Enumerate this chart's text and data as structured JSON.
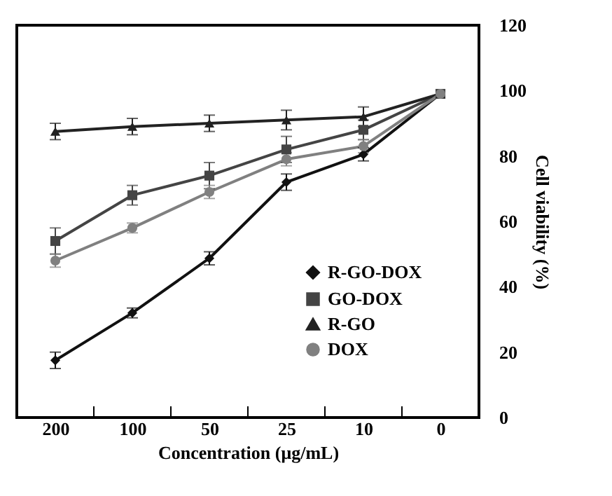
{
  "chart_data": {
    "type": "line",
    "xlabel": "Concentration (μg/mL)",
    "ylabel": "Cell viability (%)",
    "categories": [
      "200",
      "100",
      "50",
      "25",
      "10",
      "0"
    ],
    "ylim": [
      0,
      120
    ],
    "yticks": [
      0,
      20,
      40,
      60,
      80,
      100,
      120
    ],
    "grid": false,
    "legend": "bottom right",
    "line_style": "solid",
    "series": [
      {
        "name": "R-GO-DOX",
        "color": "#111111",
        "marker": "diamond",
        "values": [
          17.5,
          32,
          48.7,
          72,
          80.5,
          99
        ],
        "errors": [
          2.5,
          1.5,
          2,
          2.5,
          2,
          null
        ]
      },
      {
        "name": "GO-DOX",
        "color": "#444444",
        "marker": "square",
        "values": [
          54,
          68,
          74,
          82,
          88,
          99
        ],
        "errors": [
          4,
          3,
          4,
          4,
          3,
          null
        ]
      },
      {
        "name": "R-GO",
        "color": "#222222",
        "marker": "triangle",
        "values": [
          87.5,
          89,
          90,
          91,
          92,
          99
        ],
        "errors": [
          2.5,
          2.5,
          2.5,
          3,
          3,
          null
        ]
      },
      {
        "name": "DOX",
        "color": "#808080",
        "marker": "circle",
        "values": [
          48,
          58,
          69,
          79,
          83,
          99
        ],
        "errors": [
          2,
          1.5,
          2,
          2,
          2,
          null
        ]
      }
    ]
  }
}
